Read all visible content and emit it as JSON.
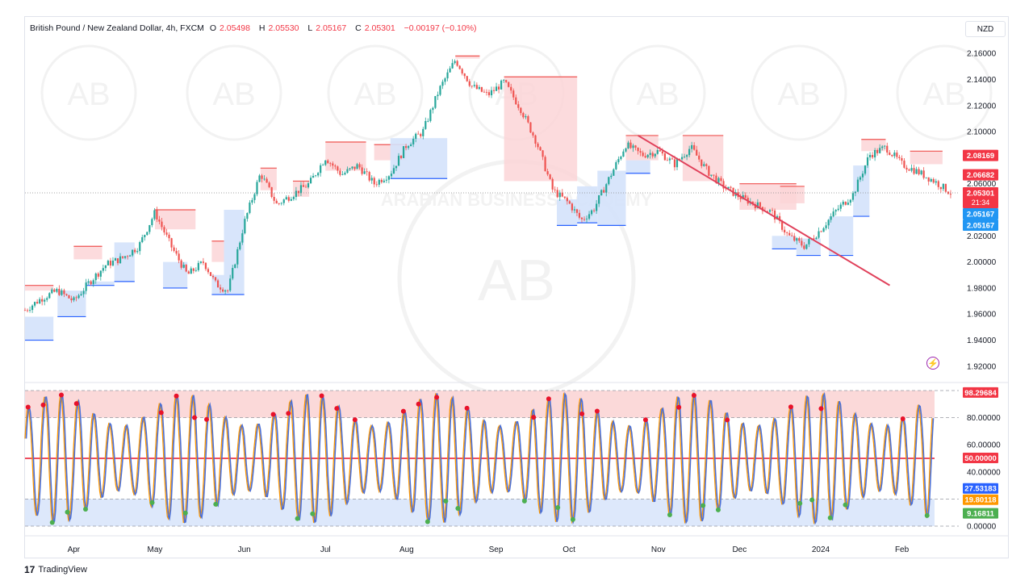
{
  "header": {
    "title": "British Pound / New Zealand Dollar, 4h, FXCM",
    "o_label": "O",
    "o_val": "2.05498",
    "h_label": "H",
    "h_val": "2.05530",
    "l_label": "L",
    "l_val": "2.05167",
    "c_label": "C",
    "c_val": "2.05301",
    "change": "−0.00197 (−0.10%)"
  },
  "currency": "NZD",
  "footer": {
    "brand": "TradingView",
    "mark": "17"
  },
  "watermark": {
    "top_text": "ARABIAN BUSINESS ACADEMY",
    "letters": "AB"
  },
  "colors": {
    "up": "#26a69a",
    "down": "#ef5350",
    "resistance_fill": "#fcd5d7",
    "support_fill": "#d4e2fb",
    "trendline": "#e0405a",
    "osc_line": "#4a6fd6",
    "osc_high": "#ff9800",
    "osc_red_dot": "#e8122a",
    "osc_green_dot": "#4caf50",
    "mid_line": "#e8122a"
  },
  "chart_data": [
    {
      "type": "candlestick",
      "title": "British Pound / New Zealand Dollar, 4h, FXCM",
      "ylim": [
        1.91,
        2.17
      ],
      "y_ticks": [
        "2.16000",
        "2.14000",
        "2.12000",
        "2.10000",
        "2.08000",
        "2.06000",
        "2.04000",
        "2.02000",
        "2.00000",
        "1.98000",
        "1.96000",
        "1.94000",
        "1.92000"
      ],
      "x_ticks": [
        "Apr",
        "May",
        "Jun",
        "Jul",
        "Aug",
        "Sep",
        "Oct",
        "Nov",
        "Dec",
        "2024",
        "Feb"
      ],
      "x_tick_positions": [
        0.6,
        1.6,
        2.7,
        3.7,
        4.7,
        5.8,
        6.7,
        7.8,
        8.8,
        9.8,
        10.8
      ],
      "xlim": [
        0,
        11.5
      ],
      "series_close": [
        [
          0.0,
          1.963
        ],
        [
          0.2,
          1.972
        ],
        [
          0.4,
          1.978
        ],
        [
          0.6,
          1.97
        ],
        [
          0.8,
          1.985
        ],
        [
          1.0,
          1.998
        ],
        [
          1.2,
          2.003
        ],
        [
          1.4,
          2.012
        ],
        [
          1.6,
          2.038
        ],
        [
          1.8,
          2.012
        ],
        [
          2.0,
          1.99
        ],
        [
          2.2,
          2.0
        ],
        [
          2.35,
          1.983
        ],
        [
          2.5,
          1.978
        ],
        [
          2.7,
          2.03
        ],
        [
          2.9,
          2.068
        ],
        [
          3.1,
          2.044
        ],
        [
          3.3,
          2.052
        ],
        [
          3.5,
          2.06
        ],
        [
          3.7,
          2.08
        ],
        [
          3.9,
          2.067
        ],
        [
          4.1,
          2.074
        ],
        [
          4.3,
          2.06
        ],
        [
          4.5,
          2.068
        ],
        [
          4.7,
          2.09
        ],
        [
          4.9,
          2.1
        ],
        [
          5.1,
          2.132
        ],
        [
          5.3,
          2.155
        ],
        [
          5.5,
          2.135
        ],
        [
          5.7,
          2.128
        ],
        [
          5.9,
          2.138
        ],
        [
          6.1,
          2.118
        ],
        [
          6.3,
          2.092
        ],
        [
          6.5,
          2.055
        ],
        [
          6.7,
          2.045
        ],
        [
          6.85,
          2.032
        ],
        [
          7.0,
          2.04
        ],
        [
          7.2,
          2.065
        ],
        [
          7.4,
          2.09
        ],
        [
          7.6,
          2.082
        ],
        [
          7.8,
          2.085
        ],
        [
          8.0,
          2.075
        ],
        [
          8.2,
          2.088
        ],
        [
          8.4,
          2.07
        ],
        [
          8.6,
          2.058
        ],
        [
          8.8,
          2.05
        ],
        [
          9.0,
          2.044
        ],
        [
          9.2,
          2.038
        ],
        [
          9.4,
          2.02
        ],
        [
          9.6,
          2.012
        ],
        [
          9.8,
          2.025
        ],
        [
          10.0,
          2.04
        ],
        [
          10.2,
          2.052
        ],
        [
          10.4,
          2.082
        ],
        [
          10.6,
          2.088
        ],
        [
          10.8,
          2.075
        ],
        [
          11.0,
          2.069
        ],
        [
          11.2,
          2.062
        ],
        [
          11.4,
          2.053
        ]
      ],
      "resistance_boxes": [
        [
          0.0,
          0.35,
          1.982,
          1.978
        ],
        [
          0.6,
          0.95,
          2.012,
          2.002
        ],
        [
          1.6,
          2.1,
          2.04,
          2.025
        ],
        [
          2.3,
          2.45,
          2.016,
          2.0
        ],
        [
          2.9,
          3.1,
          2.072,
          2.055
        ],
        [
          3.3,
          3.5,
          2.062,
          2.05
        ],
        [
          3.7,
          4.2,
          2.092,
          2.07
        ],
        [
          4.3,
          4.7,
          2.09,
          2.078
        ],
        [
          5.3,
          5.6,
          2.158,
          2.156
        ],
        [
          5.9,
          6.8,
          2.142,
          2.062
        ],
        [
          7.4,
          7.8,
          2.097,
          2.078
        ],
        [
          8.1,
          8.6,
          2.097,
          2.062
        ],
        [
          8.8,
          9.5,
          2.06,
          2.04
        ],
        [
          9.3,
          9.6,
          2.058,
          2.045
        ],
        [
          10.3,
          10.6,
          2.094,
          2.085
        ],
        [
          10.9,
          11.3,
          2.085,
          2.075
        ]
      ],
      "support_boxes": [
        [
          0.0,
          0.35,
          1.958,
          1.94
        ],
        [
          0.4,
          0.75,
          1.978,
          1.958
        ],
        [
          0.75,
          1.1,
          1.985,
          1.982
        ],
        [
          1.1,
          1.35,
          2.015,
          1.985
        ],
        [
          1.7,
          2.0,
          2.0,
          1.98
        ],
        [
          2.3,
          2.45,
          1.99,
          1.975
        ],
        [
          2.45,
          2.7,
          2.04,
          1.975
        ],
        [
          4.5,
          5.2,
          2.095,
          2.064
        ],
        [
          6.55,
          6.8,
          2.048,
          2.028
        ],
        [
          6.8,
          7.05,
          2.058,
          2.03
        ],
        [
          7.05,
          7.4,
          2.07,
          2.028
        ],
        [
          7.4,
          7.7,
          2.078,
          2.068
        ],
        [
          9.2,
          9.5,
          2.02,
          2.01
        ],
        [
          9.5,
          9.8,
          2.018,
          2.005
        ],
        [
          9.9,
          10.2,
          2.035,
          2.005
        ],
        [
          10.2,
          10.4,
          2.074,
          2.035
        ]
      ],
      "trendline": [
        [
          7.55,
          2.097
        ],
        [
          9.95,
          2.008
        ]
      ],
      "price_labels": [
        {
          "text": "2.08169",
          "value": 2.08169,
          "color": "#f23645"
        },
        {
          "text": "2.06682",
          "value": 2.06682,
          "color": "#f23645"
        },
        {
          "text": "2.05301",
          "sub": "21:34",
          "value": 2.05301,
          "color": "#f23645"
        },
        {
          "text": "2.05167",
          "value": 2.05167,
          "color": "#2196f3"
        },
        {
          "text": "2.05167",
          "value": 2.05167,
          "color": "#2196f3"
        }
      ],
      "last_price": 2.05301
    },
    {
      "type": "line",
      "title": "",
      "ylim": [
        0,
        100
      ],
      "y_ticks": [
        "80.00000",
        "60.00000",
        "40.00000",
        "0.00000"
      ],
      "upper_band": [
        80,
        100
      ],
      "lower_band": [
        0,
        20
      ],
      "mid_level": 50,
      "value_labels": [
        {
          "text": "98.29684",
          "value": 98.29684,
          "color": "#f23645"
        },
        {
          "text": "50.00000",
          "value": 50,
          "color": "#f23645"
        },
        {
          "text": "27.53183",
          "value": 27.53183,
          "color": "#2962ff"
        },
        {
          "text": "19.80118",
          "value": 19.80118,
          "color": "#ff9800"
        },
        {
          "text": "9.16811",
          "value": 9.16811,
          "color": "#4caf50"
        }
      ],
      "cycles_per_month": 8
    }
  ]
}
